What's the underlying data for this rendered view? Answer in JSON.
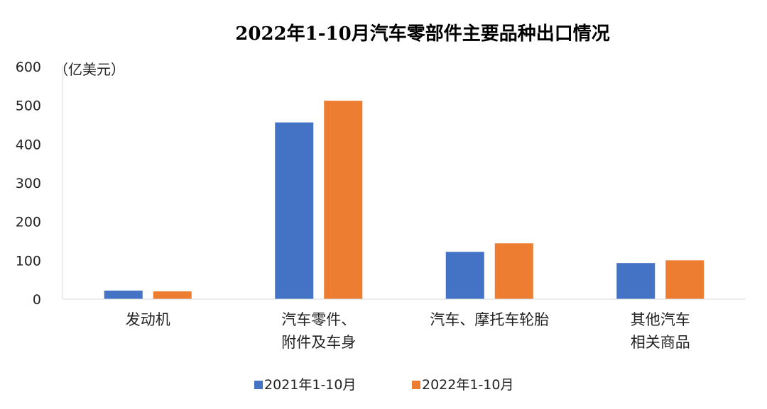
{
  "chart_data": {
    "type": "bar",
    "title": "2022年1-10月汽车零部件主要品种出口情况",
    "unit_label": "（亿美元）",
    "categories": [
      [
        "发动机"
      ],
      [
        "汽车零件、",
        "附件及车身"
      ],
      [
        "汽车、摩托车轮胎"
      ],
      [
        "其他汽车",
        "相关商品"
      ]
    ],
    "series": [
      {
        "name": "2021年1-10月",
        "color": "#4472C4",
        "values": [
          22,
          456,
          122,
          93
        ]
      },
      {
        "name": "2022年1-10月",
        "color": "#ED7D31",
        "values": [
          20,
          512,
          144,
          100
        ]
      }
    ],
    "ylim": [
      0,
      600
    ],
    "yticks": [
      0,
      100,
      200,
      300,
      400,
      500,
      600
    ],
    "grid": false,
    "legend_position": "bottom"
  }
}
